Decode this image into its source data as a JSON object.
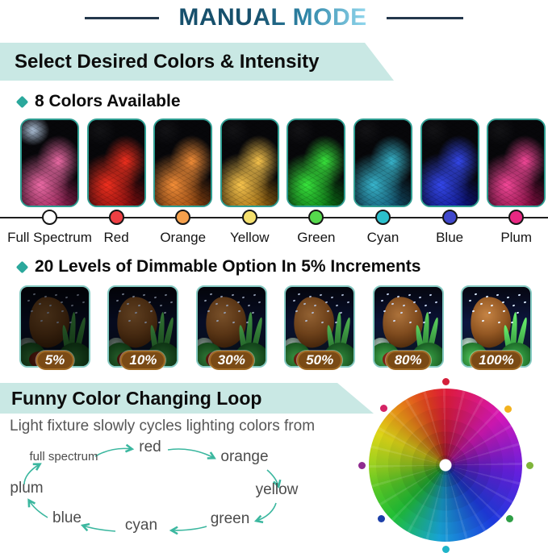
{
  "header": {
    "title": "MANUAL MODE"
  },
  "theme": {
    "banner_bg": "#c9e8e4",
    "accent": "#2ba89c",
    "title_dark": "#17506c",
    "title_light": "#93d8ee",
    "line_color": "#24384c",
    "badge_bg": "#7a4a15",
    "badge_border": "#a06a24",
    "arrow_color": "#3bb79f",
    "photo_border": "#2f9e92",
    "dim_photo_border": "#84cac2"
  },
  "colors_section": {
    "banner": "Select Desired Colors & Intensity",
    "heading": "8 Colors Available",
    "items": [
      {
        "label": "Full Spectrum",
        "dot": "#ffffff",
        "c1": "#c22a6c",
        "c2": "#f06ca8",
        "spark": true
      },
      {
        "label": "Red",
        "dot": "#ee3f43",
        "c1": "#b50f0f",
        "c2": "#f52f1e",
        "spark": false
      },
      {
        "label": "Orange",
        "dot": "#f5a04c",
        "c1": "#c05a10",
        "c2": "#f89038",
        "spark": false
      },
      {
        "label": "Yellow",
        "dot": "#f5e06e",
        "c1": "#cc8812",
        "c2": "#fdc84e",
        "spark": false
      },
      {
        "label": "Green",
        "dot": "#55d84c",
        "c1": "#0c9818",
        "c2": "#38e83c",
        "spark": false
      },
      {
        "label": "Cyan",
        "dot": "#2cc0cc",
        "c1": "#14688c",
        "c2": "#38b8d0",
        "spark": false
      },
      {
        "label": "Blue",
        "dot": "#4048cc",
        "c1": "#101ab0",
        "c2": "#3448f0",
        "spark": false
      },
      {
        "label": "Plum",
        "dot": "#e82882",
        "c1": "#b81058",
        "c2": "#f8489a",
        "spark": false
      }
    ]
  },
  "dimming_section": {
    "heading": "20 Levels of Dimmable Option In 5% Increments",
    "levels": [
      {
        "label": "5%",
        "brightness": 0.4
      },
      {
        "label": "10%",
        "brightness": 0.55
      },
      {
        "label": "30%",
        "brightness": 0.7
      },
      {
        "label": "50%",
        "brightness": 0.85
      },
      {
        "label": "80%",
        "brightness": 1.0
      },
      {
        "label": "100%",
        "brightness": 1.15
      }
    ]
  },
  "loop_section": {
    "banner": "Funny Color Changing Loop",
    "description": "Light fixture slowly cycles lighting colors from",
    "sequence": [
      "full spectrum",
      "red",
      "orange",
      "yellow",
      "green",
      "cyan",
      "blue",
      "plum"
    ]
  },
  "wheel": {
    "dots": [
      {
        "angle": 0,
        "color": "#d41f3a"
      },
      {
        "angle": 48,
        "color": "#f2b21e"
      },
      {
        "angle": 90,
        "color": "#7fb43a"
      },
      {
        "angle": 130,
        "color": "#2f9e46"
      },
      {
        "angle": 180,
        "color": "#1fb4c8"
      },
      {
        "angle": 230,
        "color": "#1c3fa8"
      },
      {
        "angle": 270,
        "color": "#8f2b8f"
      },
      {
        "angle": 313,
        "color": "#d42364"
      }
    ]
  }
}
